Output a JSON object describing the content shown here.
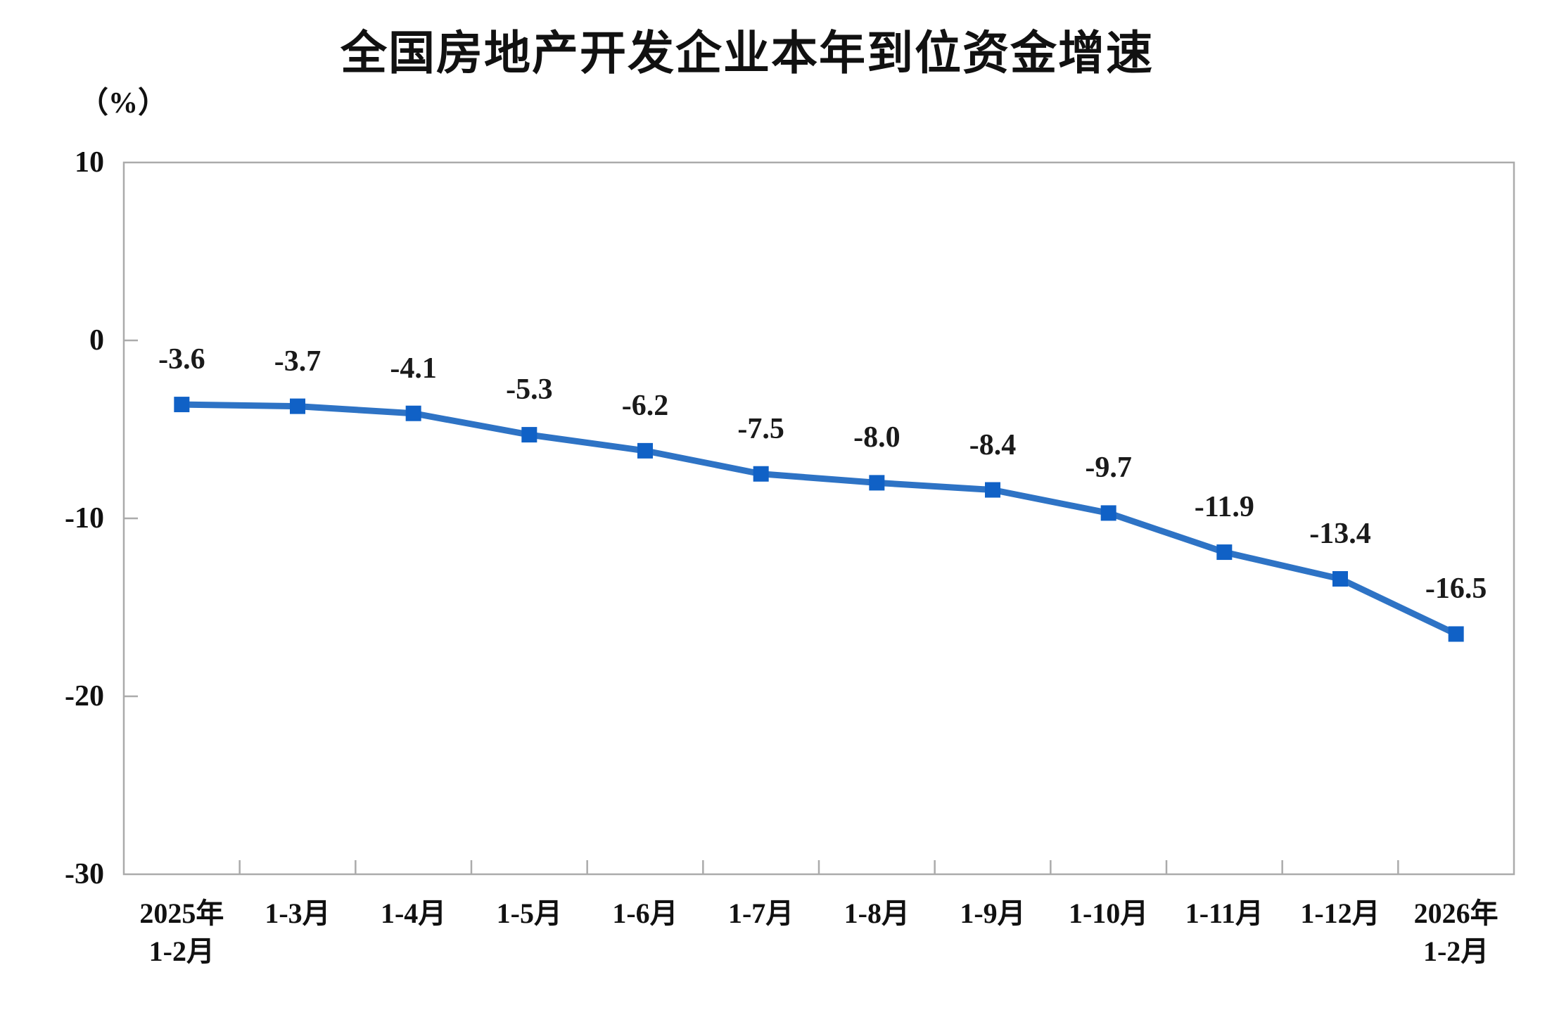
{
  "page": {
    "background": "#ffffff"
  },
  "chart_data": {
    "type": "line",
    "title": "全国房地产开发企业本年到位资金增速",
    "unit_label": "（%）",
    "categories": [
      [
        "2025年",
        "1-2月"
      ],
      [
        "1-3月"
      ],
      [
        "1-4月"
      ],
      [
        "1-5月"
      ],
      [
        "1-6月"
      ],
      [
        "1-7月"
      ],
      [
        "1-8月"
      ],
      [
        "1-9月"
      ],
      [
        "1-10月"
      ],
      [
        "1-11月"
      ],
      [
        "1-12月"
      ],
      [
        "2026年",
        "1-2月"
      ]
    ],
    "series": [
      {
        "name": "本年到位资金增速",
        "values": [
          -3.6,
          -3.7,
          -4.1,
          -5.3,
          -6.2,
          -7.5,
          -8.0,
          -8.4,
          -9.7,
          -11.9,
          -13.4,
          -16.5
        ],
        "data_labels": [
          "-3.6",
          "-3.7",
          "-4.1",
          "-5.3",
          "-6.2",
          "-7.5",
          "-8.0",
          "-8.4",
          "-9.7",
          "-11.9",
          "-13.4",
          "-16.5"
        ]
      }
    ],
    "xlabel": "",
    "ylabel": "（%）",
    "ylim": [
      -30,
      10
    ],
    "y_ticks": [
      10,
      0,
      -10,
      -20,
      -30
    ],
    "grid": false,
    "legend_position": "none",
    "marker_style": "square",
    "colors": {
      "line": "#2e73c5",
      "marker": "#1061c6",
      "axis": "#ababab",
      "text": "#111111"
    }
  }
}
